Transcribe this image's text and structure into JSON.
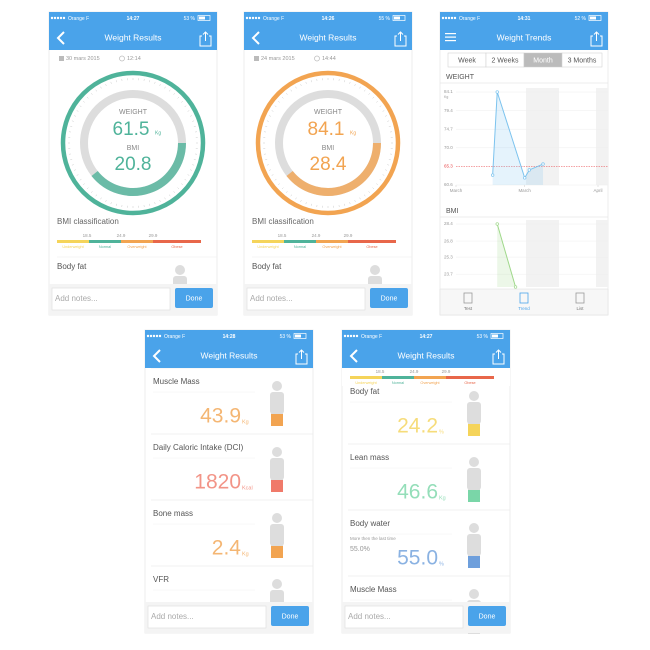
{
  "bmi_scale": {
    "thresholds": [
      "18.5",
      "24.9",
      "29.9"
    ],
    "classes": [
      "Underweight",
      "Normal",
      "Overweight",
      "Obese"
    ]
  },
  "screens": [
    {
      "status": {
        "carrier": "Orange F",
        "time": "14:27",
        "battery": "53 %"
      },
      "title": "Weight Results",
      "date": "30 mars 2015",
      "clock": "12:14",
      "weight_label": "WEIGHT",
      "weight": "61.5",
      "weight_unit": "Kg",
      "bmi_label": "BMI",
      "bmi": "20.8",
      "classification": "BMI classification",
      "section": "Body fat",
      "notes": "Add notes...",
      "done": "Done",
      "color": "#4fb39a"
    },
    {
      "status": {
        "carrier": "Orange F",
        "time": "14:26",
        "battery": "55 %"
      },
      "title": "Weight Results",
      "date": "24 mars 2015",
      "clock": "14:44",
      "weight_label": "WEIGHT",
      "weight": "84.1",
      "weight_unit": "Kg",
      "bmi_label": "BMI",
      "bmi": "28.4",
      "classification": "BMI classification",
      "section": "Body fat",
      "notes": "Add notes...",
      "done": "Done",
      "color": "#f2a451"
    },
    {
      "status": {
        "carrier": "Orange F",
        "time": "14:31",
        "battery": "52 %"
      },
      "title": "Weight Trends",
      "tabs": [
        "Week",
        "2 Weeks",
        "Month",
        "3 Months"
      ],
      "selected_tab": 2,
      "toolbar": [
        "Test",
        "Trend",
        "List"
      ],
      "selected_tool": 1
    },
    {
      "status": {
        "carrier": "Orange F",
        "time": "14:28",
        "battery": "53 %"
      },
      "title": "Weight Results",
      "items": [
        {
          "label": "Muscle Mass",
          "value": "43.9",
          "unit": "Kg",
          "color": "#f2a451"
        },
        {
          "label": "Daily Caloric Intake (DCI)",
          "value": "1820",
          "unit": "Kcal",
          "color": "#f07a6a"
        },
        {
          "label": "Bone mass",
          "value": "2.4",
          "unit": "Kg",
          "color": "#f2a451"
        },
        {
          "label": "VFR"
        }
      ],
      "notes": "Add notes...",
      "done": "Done"
    },
    {
      "status": {
        "carrier": "Orange F",
        "time": "14:27",
        "battery": "53 %"
      },
      "title": "Weight Results",
      "items": [
        {
          "label": "Body fat",
          "value": "24.2",
          "unit": "%",
          "color": "#f5d45a"
        },
        {
          "label": "Lean mass",
          "value": "46.6",
          "unit": "Kg",
          "color": "#7ad6a8"
        },
        {
          "label": "Body water",
          "note": "More then the last time",
          "note_value": "55.0%",
          "value": "55.0",
          "unit": "%",
          "color": "#6e9fdc"
        },
        {
          "label": "Muscle Mass"
        }
      ],
      "notes": "Add notes...",
      "done": "Done"
    }
  ],
  "chart_data": [
    {
      "type": "line",
      "title": "WEIGHT",
      "unit": "Kg",
      "x": [
        8,
        9,
        15,
        16,
        19
      ],
      "values": [
        63.1,
        84.1,
        62.4,
        64.4,
        65.9
      ],
      "color": "#7cc3ee",
      "xlim": [
        0,
        31
      ],
      "xticks": [
        {
          "value": 0,
          "label": "March"
        },
        {
          "value": 15,
          "label": "March"
        },
        {
          "value": 31,
          "label": "April"
        }
      ],
      "ylim": [
        60.6,
        84.1
      ],
      "yticks": [
        60.6,
        65.3,
        {
          "value": 70,
          "label": "70.0"
        },
        74.7,
        79.4,
        84.1
      ],
      "target_tick": 1,
      "target_color": "#e8474a"
    },
    {
      "type": "line",
      "title": "BMI",
      "x": [
        9,
        13
      ],
      "values": [
        28.4,
        22.5
      ],
      "color": "#9fd88a",
      "xlim": [
        0,
        31
      ],
      "ylim": [
        22.5,
        28.4
      ],
      "yticks": [
        23.7,
        25.3,
        26.8,
        28.4
      ]
    }
  ]
}
